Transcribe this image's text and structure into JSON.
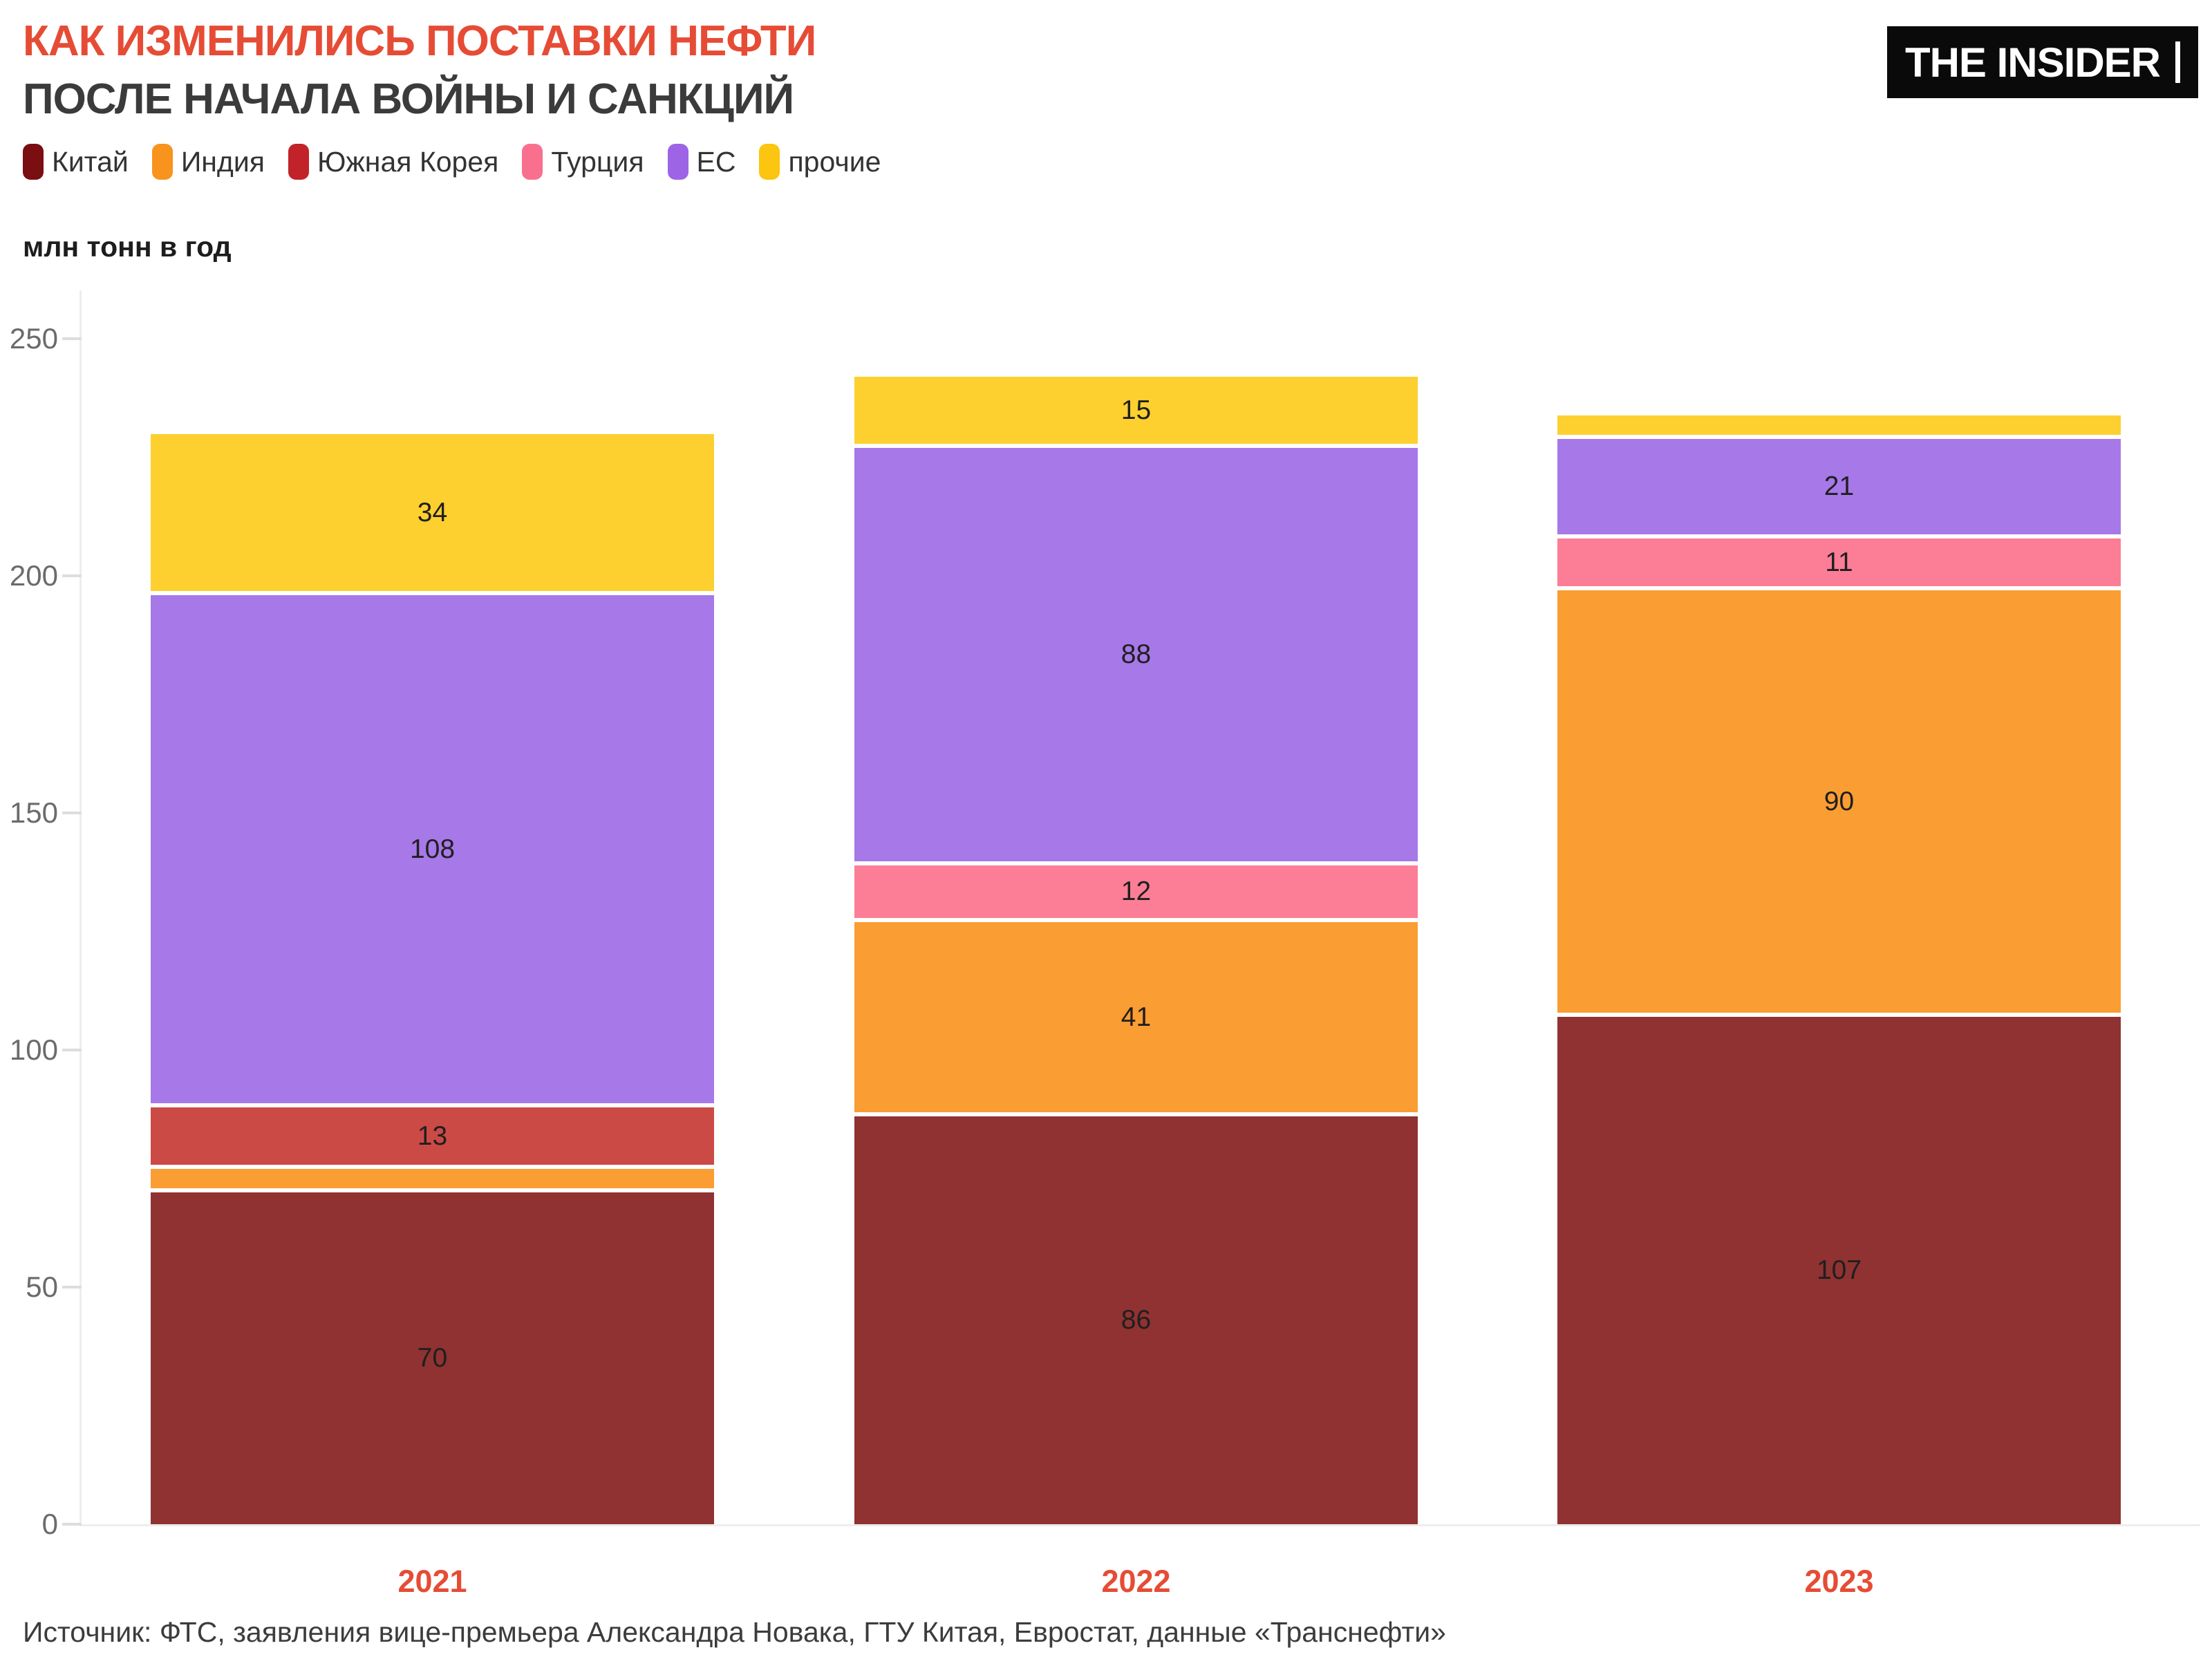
{
  "header": {
    "title": "КАК ИЗМЕНИЛИСЬ ПОСТАВКИ НЕФТИ",
    "subtitle": "ПОСЛЕ НАЧАЛА ВОЙНЫ И САНКЦИЙ",
    "logo": "THE INSIDER"
  },
  "colors": {
    "accent_red": "#e64c35",
    "logo_background": "#0a0a0a",
    "axis_line": "#ededed",
    "tick_text": "#6b6b6b"
  },
  "source": "Источник: ФТС, заявления вице-премьера Александра Новака, ГТУ Китая, Евростат, данные «Транснефти»",
  "chart_data": {
    "type": "bar",
    "stacked": true,
    "title": "КАК ИЗМЕНИЛИСЬ ПОСТАВКИ НЕФТИ ПОСЛЕ НАЧАЛА ВОЙНЫ И САНКЦИЙ",
    "ylabel": "млн тонн в год",
    "ylim": [
      0,
      250
    ],
    "y_ticks": [
      0,
      50,
      100,
      150,
      200,
      250
    ],
    "grid": false,
    "legend_position": "top",
    "categories": [
      "2021",
      "2022",
      "2023"
    ],
    "series": [
      {
        "name": "Китай",
        "color": "#7a0e10",
        "bar_color": "#8f3231",
        "values": [
          70,
          86,
          107
        ],
        "labels": [
          "70",
          "86",
          "107"
        ]
      },
      {
        "name": "Индия",
        "color": "#f8941d",
        "bar_color": "#fa9d33",
        "values": [
          5,
          41,
          90
        ],
        "labels": [
          "",
          "41",
          "90"
        ]
      },
      {
        "name": "Южная Корея",
        "color": "#c2232a",
        "bar_color": "#cb4a46",
        "values": [
          13,
          0,
          0
        ],
        "labels": [
          "13",
          "",
          ""
        ]
      },
      {
        "name": "Турция",
        "color": "#f9708f",
        "bar_color": "#fc7d96",
        "values": [
          0,
          12,
          11
        ],
        "labels": [
          "",
          "12",
          "11"
        ]
      },
      {
        "name": "ЕС",
        "color": "#9d64e6",
        "bar_color": "#a678e8",
        "values": [
          108,
          88,
          21
        ],
        "labels": [
          "108",
          "88",
          "21"
        ]
      },
      {
        "name": "прочие",
        "color": "#fcc50f",
        "bar_color": "#fdd02f",
        "values": [
          34,
          15,
          5
        ],
        "labels": [
          "34",
          "15",
          ""
        ]
      }
    ]
  }
}
